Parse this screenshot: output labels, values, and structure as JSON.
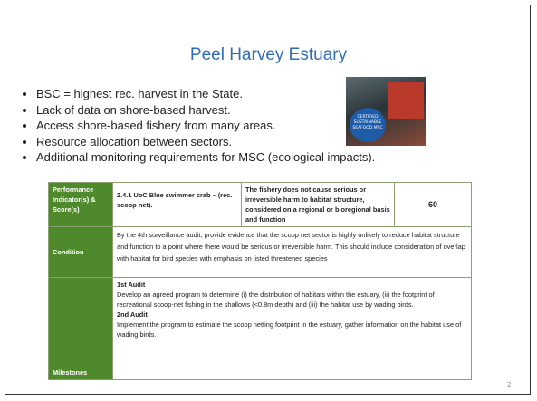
{
  "title": "Peel Harvey Estuary",
  "bullets": [
    "BSC = highest rec. harvest in the State.",
    "Lack of data on shore-based harvest.",
    "Access shore-based fishery from many areas.",
    "Resource allocation between sectors.",
    "Additional monitoring requirements for MSC (ecological impacts)."
  ],
  "image": {
    "logo": "CERTIFIED SUSTAINABLE SEAFOOD MSC"
  },
  "table": {
    "rows": [
      [
        "Performance Indicator(s) & Score(s)",
        "2.4.1 UoC Blue swimmer crab – (rec. scoop net).",
        "The fishery does not cause serious or irreversible harm to habitat structure, considered on a regional or bioregional basis and function",
        "60"
      ],
      [
        "Condition",
        "By the 4th surveillance audit, provide evidence that the scoop net sector is highly unlikely to reduce habitat structure and function to a point where there would be serious or irreversible harm. This should include consideration of overlap with habitat for bird species with emphasis on listed threatened species"
      ],
      [
        "Milestones",
        "1st Audit",
        "Develop an agreed program to determine (i) the distribution of habitats within the estuary, (ii) the footprint of recreational scoop-net fishing in the shallows (<0.8m depth) and (iii) the habitat use by wading birds.",
        "2nd Audit",
        "Implement the program to estimate the scoop netting footprint in the estuary, gather information on the habitat use of wading birds."
      ]
    ]
  },
  "page_number": "2"
}
